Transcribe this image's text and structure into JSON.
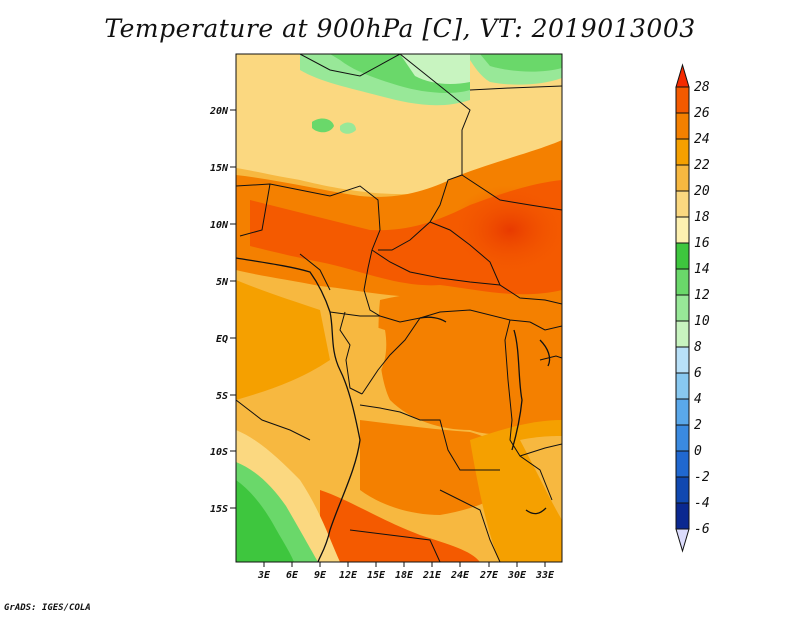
{
  "title": "Temperature at 900hPa [C], VT: 2019013003",
  "credit": "GrADS: IGES/COLA",
  "map": {
    "lat_labels": [
      "20N",
      "15N",
      "10N",
      "5N",
      "EQ",
      "5S",
      "10S",
      "15S"
    ],
    "lon_labels": [
      "3E",
      "6E",
      "9E",
      "12E",
      "15E",
      "18E",
      "21E",
      "24E",
      "27E",
      "30E",
      "33E"
    ]
  },
  "colorbar": {
    "levels": [
      "28",
      "26",
      "24",
      "22",
      "20",
      "18",
      "16",
      "14",
      "12",
      "10",
      "8",
      "6",
      "4",
      "2",
      "0",
      "-2",
      "-4",
      "-6"
    ],
    "colors": [
      "#f42a00",
      "#f45a00",
      "#f48000",
      "#f5a000",
      "#f7b840",
      "#fbd880",
      "#fdf0b0",
      "#3ec63e",
      "#6ad86a",
      "#98e898",
      "#c8f4c0",
      "#b8e0f8",
      "#88c8f0",
      "#5aa8ea",
      "#3a8ae0",
      "#2068d0",
      "#1048b0",
      "#0a2890",
      "#101078",
      "#dcdcfc"
    ]
  }
}
